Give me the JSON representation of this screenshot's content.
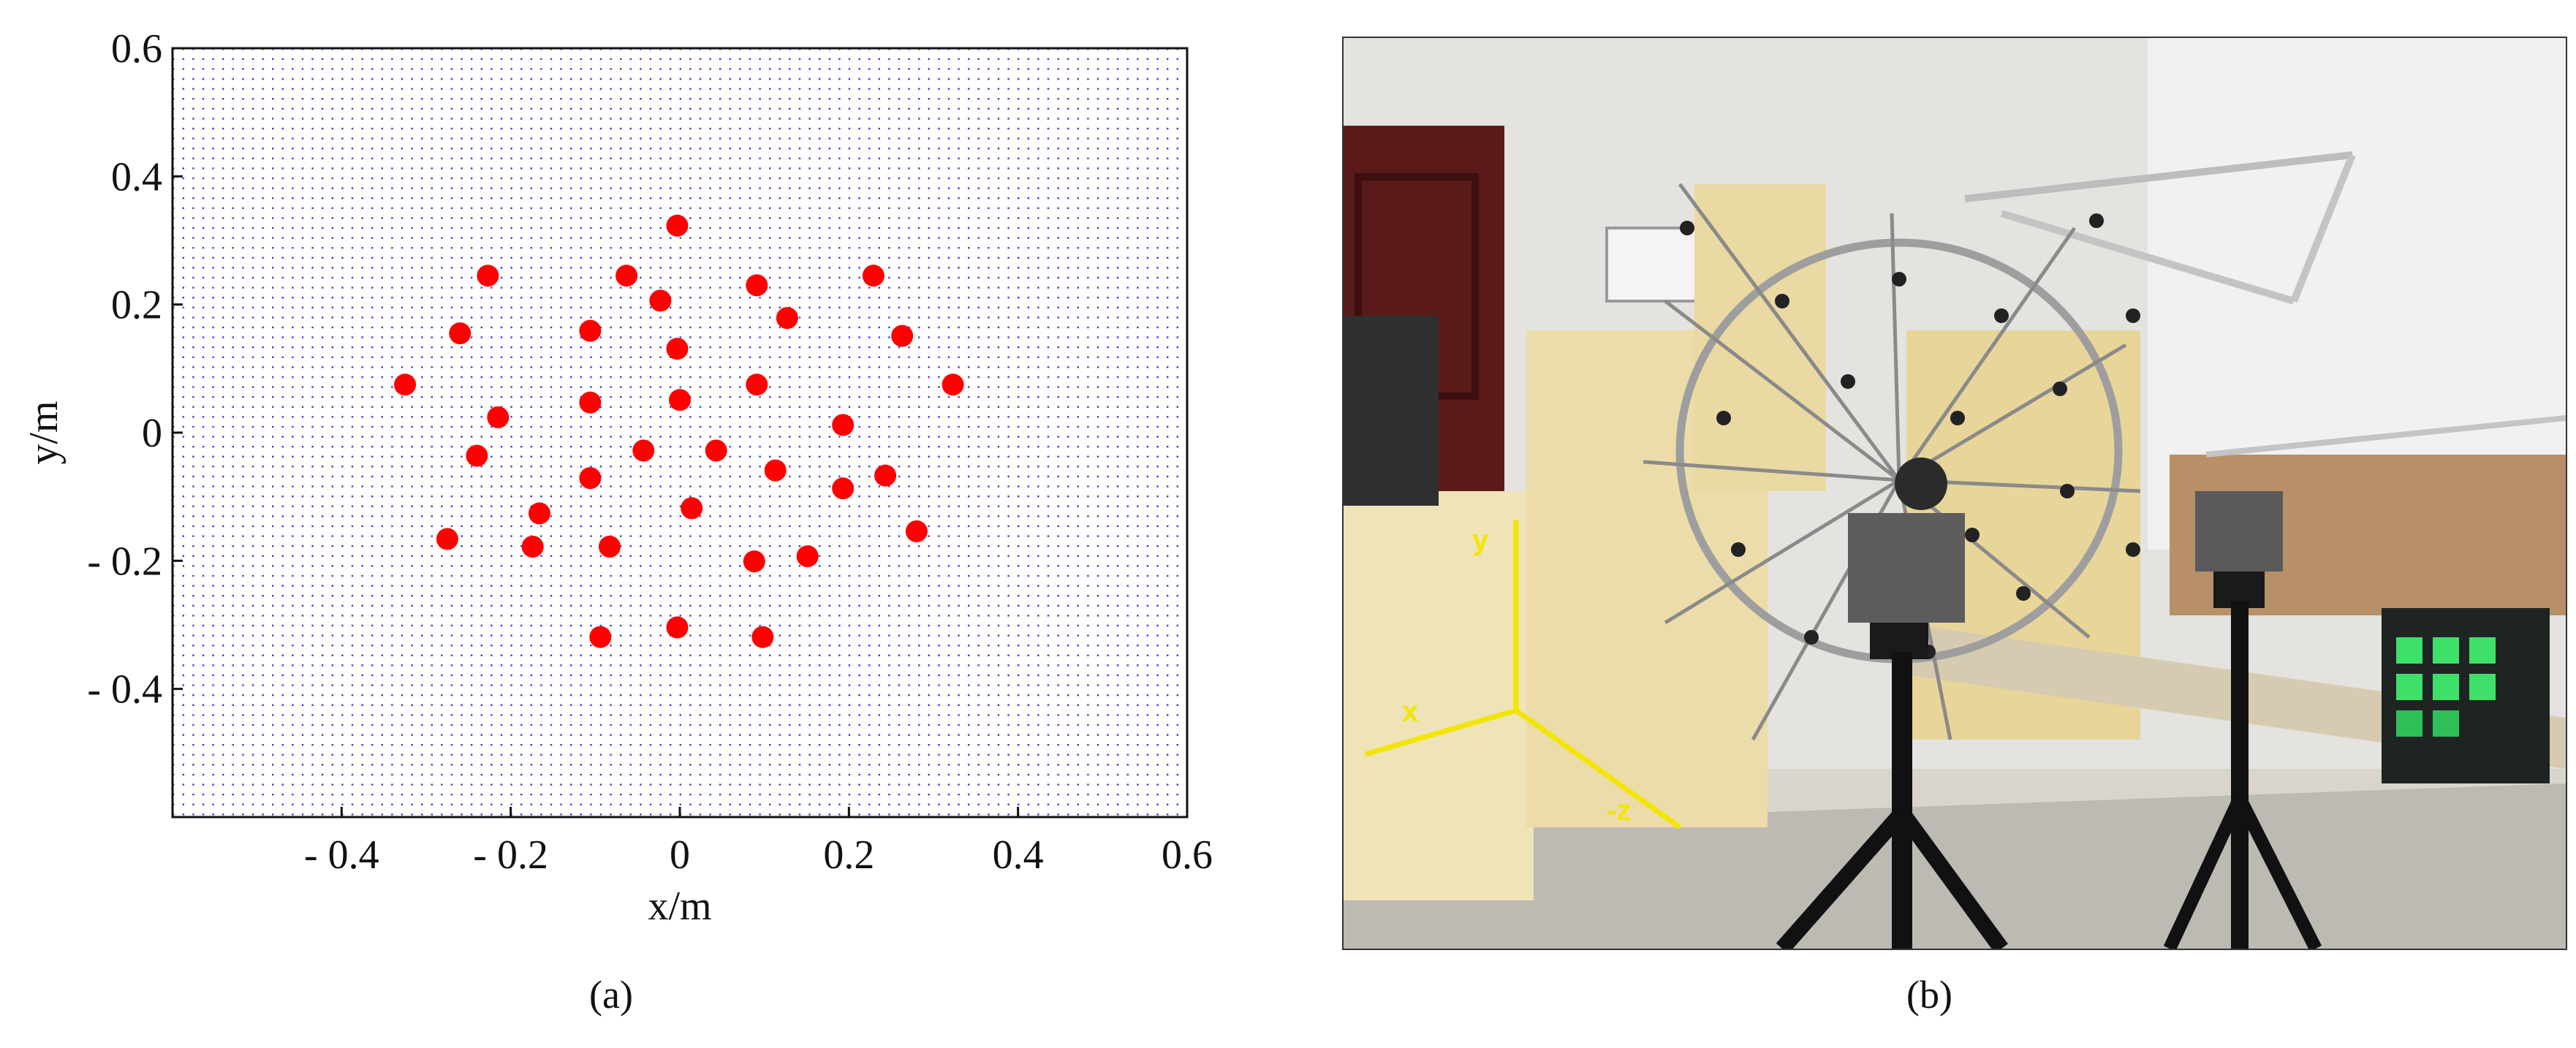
{
  "chart_data": {
    "type": "scatter",
    "title": "",
    "xlabel": "x/m",
    "ylabel": "y/m",
    "xlim": [
      -0.6,
      0.6
    ],
    "ylim": [
      -0.6,
      0.6
    ],
    "x_ticks": [
      "- 0.4",
      "- 0.2",
      "0",
      "0.2",
      "0.4",
      "0.6"
    ],
    "x_tick_values": [
      -0.4,
      -0.2,
      0,
      0.2,
      0.4,
      0.6
    ],
    "y_ticks": [
      "0.6",
      "0.4",
      "0.2",
      "0",
      "- 0.2",
      "- 0.4"
    ],
    "y_tick_values": [
      0.6,
      0.4,
      0.2,
      0,
      -0.2,
      -0.4
    ],
    "grid": "dotted blue",
    "marker_color": "#ff0000",
    "grid_color": "#3b3bd6",
    "points": [
      [
        -0.003,
        0.323
      ],
      [
        -0.227,
        0.245
      ],
      [
        -0.063,
        0.245
      ],
      [
        0.229,
        0.245
      ],
      [
        0.091,
        0.23
      ],
      [
        -0.023,
        0.206
      ],
      [
        0.127,
        0.179
      ],
      [
        -0.26,
        0.155
      ],
      [
        -0.106,
        0.159
      ],
      [
        0.263,
        0.151
      ],
      [
        -0.003,
        0.131
      ],
      [
        -0.325,
        0.075
      ],
      [
        0.091,
        0.075
      ],
      [
        0.323,
        0.075
      ],
      [
        -0.106,
        0.047
      ],
      [
        0.0,
        0.051
      ],
      [
        -0.215,
        0.024
      ],
      [
        0.193,
        0.012
      ],
      [
        -0.043,
        -0.028
      ],
      [
        0.043,
        -0.028
      ],
      [
        -0.24,
        -0.036
      ],
      [
        0.113,
        -0.059
      ],
      [
        -0.106,
        -0.071
      ],
      [
        0.243,
        -0.067
      ],
      [
        0.193,
        -0.087
      ],
      [
        -0.166,
        -0.126
      ],
      [
        0.014,
        -0.118
      ],
      [
        0.28,
        -0.154
      ],
      [
        -0.275,
        -0.166
      ],
      [
        -0.174,
        -0.178
      ],
      [
        -0.083,
        -0.178
      ],
      [
        0.151,
        -0.193
      ],
      [
        0.088,
        -0.201
      ],
      [
        -0.094,
        -0.319
      ],
      [
        -0.003,
        -0.304
      ],
      [
        0.098,
        -0.319
      ]
    ]
  },
  "captions": {
    "a": "(a)",
    "b": "(b)"
  },
  "photo": {
    "axis_labels": {
      "y": "y",
      "x": "x",
      "z": "-z"
    },
    "axis_color": "#f2e600"
  }
}
